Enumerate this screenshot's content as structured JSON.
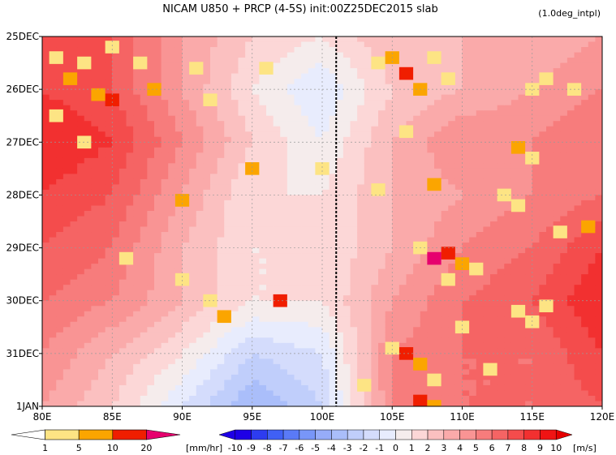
{
  "chart_data": {
    "type": "heatmap",
    "title": "NICAM   U850 + PRCP (4-5S) init:00Z25DEC2015 slab",
    "subtitle": "(1.0deg_intpl)",
    "x_ticks": [
      "80E",
      "85E",
      "90E",
      "95E",
      "100E",
      "105E",
      "110E",
      "115E",
      "120E"
    ],
    "x_values": [
      80,
      85,
      90,
      95,
      100,
      105,
      110,
      115,
      120
    ],
    "xlim": [
      80,
      120
    ],
    "y_ticks": [
      "25DEC",
      "26DEC",
      "27DEC",
      "28DEC",
      "29DEC",
      "30DEC",
      "31DEC",
      "1JAN"
    ],
    "y_values": [
      0,
      1,
      2,
      3,
      4,
      5,
      6,
      7
    ],
    "ylim": [
      0,
      7
    ],
    "dashed_line_x": 101,
    "grid": true,
    "u850_levels": [
      -10,
      -9,
      -8,
      -7,
      -6,
      -5,
      -4,
      -3,
      -2,
      -1,
      0,
      1,
      2,
      3,
      4,
      5,
      6,
      7,
      8,
      9,
      10
    ],
    "u850_units": "[m/s]",
    "prcp_levels": [
      1,
      5,
      10,
      20
    ],
    "prcp_units": "[mm/hr]",
    "u850_field": {
      "lon": [
        80,
        85,
        90,
        95,
        100,
        105,
        110,
        115,
        120
      ],
      "time": [
        0,
        1,
        2,
        3,
        4,
        5,
        6,
        7
      ],
      "values": [
        [
          8,
          7,
          4,
          2,
          1,
          3,
          3,
          3,
          4
        ],
        [
          8,
          7,
          4,
          1,
          -1,
          2,
          3,
          4,
          5
        ],
        [
          9,
          8,
          5,
          2,
          0,
          3,
          5,
          5,
          6
        ],
        [
          8,
          7,
          4,
          1,
          1,
          3,
          4,
          5,
          6
        ],
        [
          7,
          6,
          3,
          1,
          1,
          3,
          5,
          6,
          8
        ],
        [
          6,
          5,
          3,
          1,
          1,
          4,
          6,
          7,
          9
        ],
        [
          5,
          3,
          1,
          -2,
          -1,
          5,
          6,
          6,
          8
        ],
        [
          4,
          2,
          -1,
          -4,
          -2,
          5,
          6,
          6,
          7
        ]
      ]
    },
    "prcp_cells": [
      {
        "lon": 81,
        "t": 0.4,
        "v": 2
      },
      {
        "lon": 82,
        "t": 0.8,
        "v": 5
      },
      {
        "lon": 83,
        "t": 0.5,
        "v": 2
      },
      {
        "lon": 85,
        "t": 0.2,
        "v": 2
      },
      {
        "lon": 85,
        "t": 1.2,
        "v": 10
      },
      {
        "lon": 84,
        "t": 1.1,
        "v": 5
      },
      {
        "lon": 81,
        "t": 1.5,
        "v": 2
      },
      {
        "lon": 83,
        "t": 2.0,
        "v": 2
      },
      {
        "lon": 87,
        "t": 0.5,
        "v": 2
      },
      {
        "lon": 88,
        "t": 1.0,
        "v": 5
      },
      {
        "lon": 91,
        "t": 0.6,
        "v": 2
      },
      {
        "lon": 92,
        "t": 1.2,
        "v": 2
      },
      {
        "lon": 90,
        "t": 3.1,
        "v": 5
      },
      {
        "lon": 86,
        "t": 4.2,
        "v": 2
      },
      {
        "lon": 90,
        "t": 4.6,
        "v": 2
      },
      {
        "lon": 92,
        "t": 5.0,
        "v": 2
      },
      {
        "lon": 93,
        "t": 5.3,
        "v": 5
      },
      {
        "lon": 95,
        "t": 2.5,
        "v": 5
      },
      {
        "lon": 97,
        "t": 5.0,
        "v": 10
      },
      {
        "lon": 100,
        "t": 2.5,
        "v": 2
      },
      {
        "lon": 96,
        "t": 0.6,
        "v": 2
      },
      {
        "lon": 104,
        "t": 0.5,
        "v": 2
      },
      {
        "lon": 105,
        "t": 0.4,
        "v": 5
      },
      {
        "lon": 106,
        "t": 0.7,
        "v": 10
      },
      {
        "lon": 107,
        "t": 1.0,
        "v": 5
      },
      {
        "lon": 108,
        "t": 0.4,
        "v": 2
      },
      {
        "lon": 109,
        "t": 0.8,
        "v": 2
      },
      {
        "lon": 106,
        "t": 1.8,
        "v": 2
      },
      {
        "lon": 108,
        "t": 2.8,
        "v": 5
      },
      {
        "lon": 107,
        "t": 4.0,
        "v": 2
      },
      {
        "lon": 108,
        "t": 4.2,
        "v": 20
      },
      {
        "lon": 109,
        "t": 4.1,
        "v": 10
      },
      {
        "lon": 110,
        "t": 4.3,
        "v": 5
      },
      {
        "lon": 109,
        "t": 4.6,
        "v": 2
      },
      {
        "lon": 111,
        "t": 4.4,
        "v": 2
      },
      {
        "lon": 113,
        "t": 3.0,
        "v": 2
      },
      {
        "lon": 114,
        "t": 3.2,
        "v": 2
      },
      {
        "lon": 115,
        "t": 1.0,
        "v": 2
      },
      {
        "lon": 116,
        "t": 0.8,
        "v": 2
      },
      {
        "lon": 118,
        "t": 1.0,
        "v": 2
      },
      {
        "lon": 114,
        "t": 2.1,
        "v": 5
      },
      {
        "lon": 115,
        "t": 2.3,
        "v": 2
      },
      {
        "lon": 117,
        "t": 3.7,
        "v": 2
      },
      {
        "lon": 119,
        "t": 3.6,
        "v": 5
      },
      {
        "lon": 114,
        "t": 5.2,
        "v": 2
      },
      {
        "lon": 115,
        "t": 5.4,
        "v": 2
      },
      {
        "lon": 116,
        "t": 5.1,
        "v": 2
      },
      {
        "lon": 110,
        "t": 5.5,
        "v": 2
      },
      {
        "lon": 106,
        "t": 6.0,
        "v": 10
      },
      {
        "lon": 105,
        "t": 5.9,
        "v": 2
      },
      {
        "lon": 107,
        "t": 6.2,
        "v": 5
      },
      {
        "lon": 108,
        "t": 6.5,
        "v": 2
      },
      {
        "lon": 112,
        "t": 6.3,
        "v": 2
      },
      {
        "lon": 107,
        "t": 6.9,
        "v": 10
      },
      {
        "lon": 108,
        "t": 7.0,
        "v": 5
      },
      {
        "lon": 104,
        "t": 2.9,
        "v": 2
      },
      {
        "lon": 103,
        "t": 6.6,
        "v": 2
      }
    ]
  },
  "colors": {
    "prcp": [
      "#ffffff",
      "#fde484",
      "#fba500",
      "#f01e00",
      "#e6006e"
    ],
    "u_neg": [
      "#1e00e6",
      "#2d3cf0",
      "#4060f5",
      "#5a7af7",
      "#7896f8",
      "#96acf9",
      "#aabefa",
      "#c0cefb",
      "#d4dcfc",
      "#e8ecfd"
    ],
    "u_pos": [
      "#f5ecec",
      "#fcd7d7",
      "#fbc0c0",
      "#faaaaa",
      "#f99494",
      "#f77c7c",
      "#f56464",
      "#f44c4c",
      "#f23030",
      "#f01414",
      "#e60000"
    ]
  }
}
